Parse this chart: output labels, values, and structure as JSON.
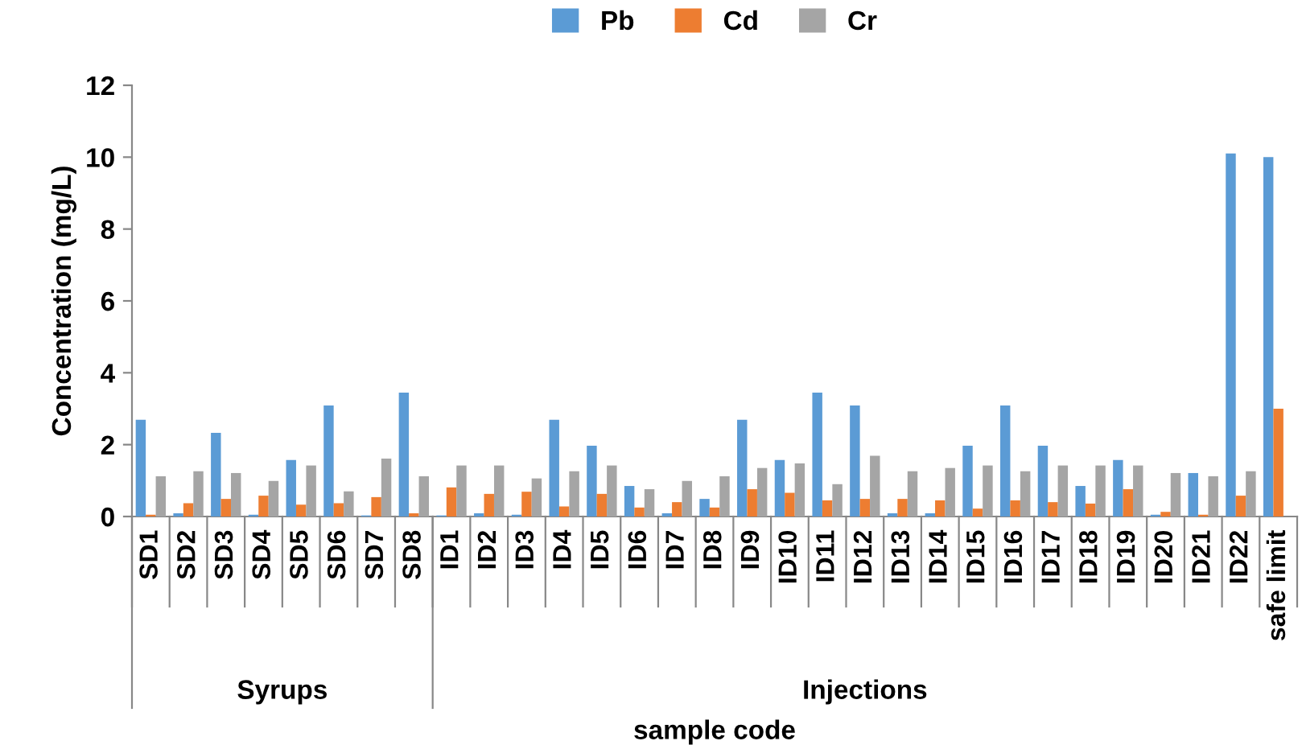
{
  "chart_data": {
    "type": "bar",
    "xlabel": "sample code",
    "ylabel": "Concentration (mg/L)",
    "categories": [
      "SD1",
      "SD2",
      "SD3",
      "SD4",
      "SD5",
      "SD6",
      "SD7",
      "SD8",
      "ID1",
      "ID2",
      "ID3",
      "ID4",
      "ID5",
      "ID6",
      "ID7",
      "ID8",
      "ID9",
      "ID10",
      "ID11",
      "ID12",
      "ID13",
      "ID14",
      "ID15",
      "ID16",
      "ID17",
      "ID18",
      "ID19",
      "ID20",
      "ID21",
      "ID22",
      "safe limit"
    ],
    "series": [
      {
        "name": "Pb",
        "color": "#5b9bd5",
        "values": [
          2.69,
          0.09,
          2.33,
          0.05,
          1.57,
          3.09,
          0.03,
          3.45,
          0.03,
          0.09,
          0.05,
          2.69,
          1.97,
          0.85,
          0.09,
          0.49,
          2.69,
          1.57,
          3.45,
          3.09,
          0.09,
          0.09,
          1.97,
          3.09,
          1.97,
          0.85,
          1.57,
          0.05,
          1.21,
          10.1,
          10.0
        ]
      },
      {
        "name": "Cd",
        "color": "#ed7d31",
        "values": [
          0.05,
          0.37,
          0.49,
          0.58,
          0.33,
          0.37,
          0.54,
          0.09,
          0.81,
          0.63,
          0.69,
          0.28,
          0.63,
          0.25,
          0.4,
          0.25,
          0.76,
          0.66,
          0.45,
          0.49,
          0.49,
          0.45,
          0.22,
          0.45,
          0.4,
          0.36,
          0.76,
          0.13,
          0.05,
          0.58,
          3.0
        ]
      },
      {
        "name": "Cr",
        "color": "#a5a5a5",
        "values": [
          1.12,
          1.26,
          1.21,
          0.99,
          1.42,
          0.7,
          1.61,
          1.12,
          1.42,
          1.42,
          1.06,
          1.26,
          1.42,
          0.76,
          0.99,
          1.12,
          1.35,
          1.48,
          0.9,
          1.69,
          1.26,
          1.35,
          1.42,
          1.26,
          1.42,
          1.42,
          1.42,
          1.21,
          1.12,
          1.26,
          null
        ]
      }
    ],
    "ylim": [
      0,
      12
    ],
    "yticks": [
      0,
      2,
      4,
      6,
      8,
      10,
      12
    ],
    "grid": false,
    "legend": "top",
    "annotations": [
      "Syrups",
      "Injections"
    ]
  }
}
